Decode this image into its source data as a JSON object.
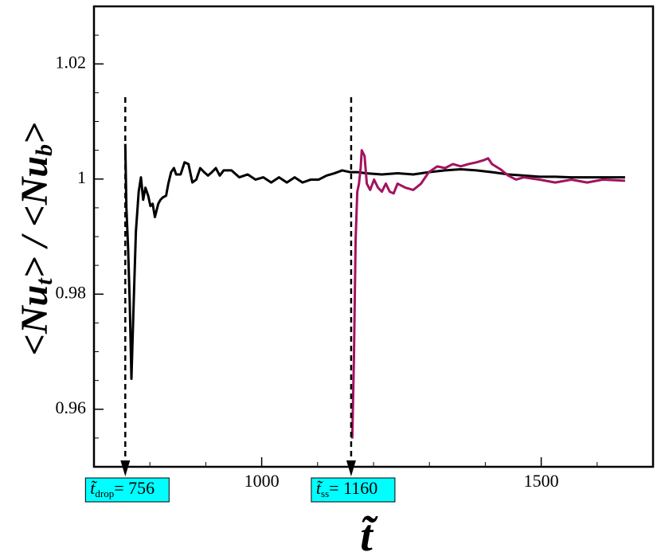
{
  "chart_data": {
    "type": "line",
    "xlabel": "t̃",
    "ylabel": [
      {
        "text": "<Nu"
      },
      {
        "text": "t",
        "sub": true
      },
      {
        "text": "> / <Nu"
      },
      {
        "text": "b",
        "sub": true
      },
      {
        "text": ">"
      }
    ],
    "xlim": [
      700,
      1700
    ],
    "ylim": [
      0.95,
      1.03
    ],
    "xticks": [
      1000,
      1500
    ],
    "yticks": [
      0.96,
      0.98,
      1,
      1.02
    ],
    "xminorticks": [
      800,
      900,
      1100,
      1200,
      1300,
      1400,
      1600
    ],
    "yminorticks": [
      0.955,
      0.965,
      0.97,
      0.975,
      0.985,
      0.99,
      0.995,
      1.005,
      1.01,
      1.015,
      1.025
    ],
    "series": [
      {
        "color": "#000000",
        "x": [
          756,
          758,
          761,
          764,
          767,
          771,
          775,
          780,
          784,
          788,
          792,
          797,
          801,
          805,
          809,
          815,
          819,
          823,
          829,
          833,
          838,
          843,
          847,
          855,
          862,
          869,
          876,
          883,
          890,
          897,
          904,
          911,
          918,
          925,
          932,
          946,
          960,
          975,
          989,
          1003,
          1017,
          1031,
          1045,
          1059,
          1073,
          1088,
          1102,
          1116,
          1130,
          1144,
          1158,
          1172,
          1186,
          1215,
          1243,
          1271,
          1299,
          1328,
          1356,
          1384,
          1412,
          1441,
          1469,
          1497,
          1525,
          1554,
          1582,
          1650
        ],
        "y": [
          1.0061,
          0.995,
          0.9881,
          0.9784,
          0.9653,
          0.9784,
          0.9909,
          0.9978,
          1.0003,
          0.9964,
          0.9985,
          0.9971,
          0.9953,
          0.9957,
          0.9934,
          0.9957,
          0.9964,
          0.9968,
          0.9971,
          0.9992,
          1.0012,
          1.0019,
          1.0008,
          1.0008,
          1.0029,
          1.0026,
          0.9994,
          0.9999,
          1.0019,
          1.0012,
          1.0006,
          1.0012,
          1.0019,
          1.0006,
          1.0015,
          1.0015,
          1.0003,
          1.0008,
          0.9999,
          1.0003,
          0.9994,
          1.0003,
          0.9994,
          1.0003,
          0.9994,
          0.9999,
          0.9999,
          1.0006,
          1.001,
          1.0015,
          1.0012,
          1.0012,
          1.001,
          1.0008,
          1.001,
          1.0008,
          1.0012,
          1.0015,
          1.0017,
          1.0015,
          1.0012,
          1.0008,
          1.0006,
          1.0004,
          1.0004,
          1.0003,
          1.0003,
          1.0003
        ]
      },
      {
        "color": "#a3135f",
        "x": [
          1162,
          1165,
          1168,
          1171,
          1174,
          1177,
          1179,
          1184,
          1188,
          1194,
          1201,
          1208,
          1215,
          1222,
          1229,
          1236,
          1243,
          1257,
          1271,
          1285,
          1299,
          1314,
          1328,
          1342,
          1356,
          1370,
          1384,
          1398,
          1405,
          1412,
          1427,
          1441,
          1455,
          1469,
          1497,
          1525,
          1554,
          1582,
          1610,
          1650
        ],
        "y": [
          0.9549,
          0.9688,
          0.9895,
          0.9978,
          0.9992,
          1.0019,
          1.005,
          1.004,
          0.9992,
          0.9981,
          0.9999,
          0.9985,
          0.9978,
          0.9992,
          0.9978,
          0.9975,
          0.9992,
          0.9985,
          0.9981,
          0.9992,
          1.0012,
          1.0022,
          1.0019,
          1.0026,
          1.0022,
          1.0026,
          1.0029,
          1.0033,
          1.0036,
          1.0026,
          1.0017,
          1.0006,
          0.9999,
          1.0003,
          0.9999,
          0.9994,
          0.9999,
          0.9994,
          0.9999,
          0.9997
        ]
      }
    ],
    "annotations": [
      {
        "x": 756,
        "symbol": "t̃",
        "sub": "drop",
        "text": "= 756",
        "color": "#00ffff"
      },
      {
        "x": 1160,
        "symbol": "t̃",
        "sub": "ss",
        "text": "= 1160",
        "color": "#00ffff"
      }
    ]
  }
}
